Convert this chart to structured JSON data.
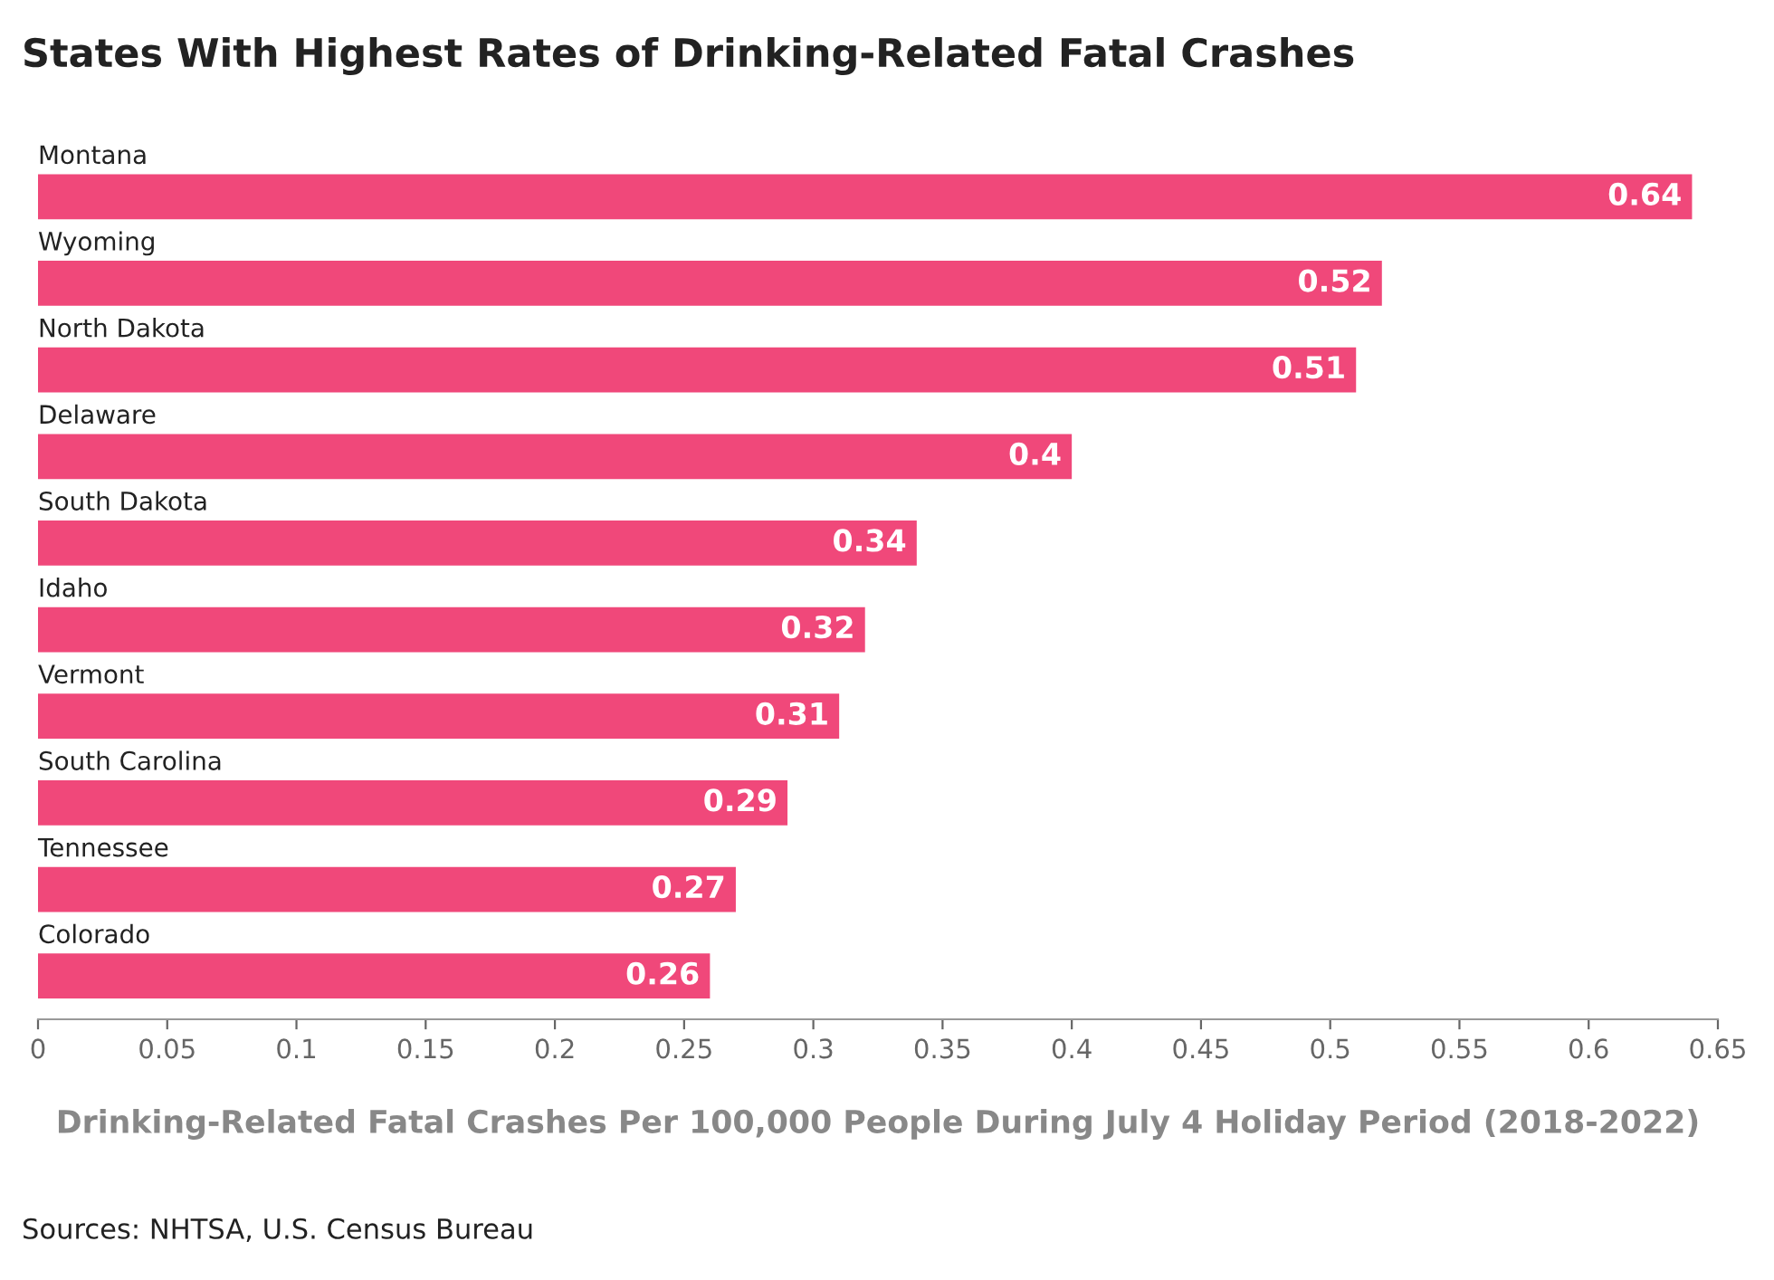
{
  "chart_data": {
    "type": "bar",
    "orientation": "horizontal",
    "title": "States With Highest Rates of Drinking-Related Fatal Crashes",
    "xlabel": "Drinking-Related Fatal Crashes Per 100,000 People During July 4 Holiday Period (2018-2022)",
    "categories": [
      "Montana",
      "Wyoming",
      "North Dakota",
      "Delaware",
      "South Dakota",
      "Idaho",
      "Vermont",
      "South Carolina",
      "Tennessee",
      "Colorado"
    ],
    "values": [
      0.64,
      0.52,
      0.51,
      0.4,
      0.34,
      0.32,
      0.31,
      0.29,
      0.27,
      0.26
    ],
    "color": "#f0487a",
    "data_labels": true,
    "grid": false,
    "legend": false,
    "xlim": [
      0,
      0.65
    ],
    "xticks": [
      0,
      0.05,
      0.1,
      0.15,
      0.2,
      0.25,
      0.3,
      0.35,
      0.4,
      0.45,
      0.5,
      0.55,
      0.6,
      0.65
    ],
    "annotations": [
      "Sources: NHTSA, U.S. Census Bureau"
    ]
  }
}
